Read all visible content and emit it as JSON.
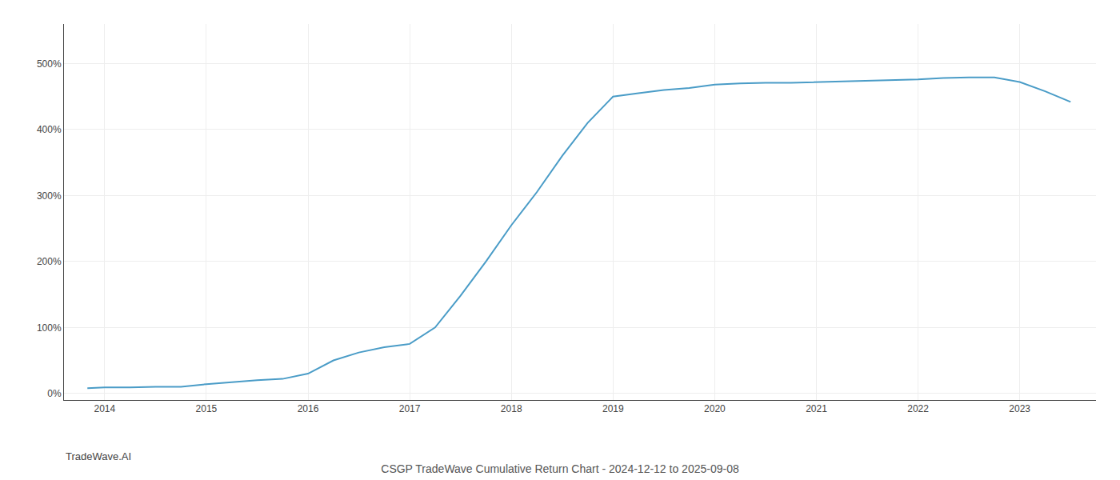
{
  "chart_data": {
    "type": "line",
    "title": "CSGP TradeWave Cumulative Return Chart - 2024-12-12 to 2025-09-08",
    "annotations": [
      "TradeWave.AI"
    ],
    "x": [
      2013.83,
      2014.0,
      2014.25,
      2014.5,
      2014.75,
      2015.0,
      2015.25,
      2015.5,
      2015.75,
      2016.0,
      2016.25,
      2016.5,
      2016.75,
      2017.0,
      2017.25,
      2017.5,
      2017.75,
      2018.0,
      2018.25,
      2018.5,
      2018.75,
      2019.0,
      2019.25,
      2019.5,
      2019.75,
      2020.0,
      2020.25,
      2020.5,
      2020.75,
      2021.0,
      2021.25,
      2021.5,
      2021.75,
      2022.0,
      2022.25,
      2022.5,
      2022.75,
      2023.0,
      2023.25,
      2023.5
    ],
    "values": [
      8,
      9,
      9,
      10,
      10,
      14,
      17,
      20,
      22,
      30,
      50,
      62,
      70,
      75,
      100,
      148,
      200,
      255,
      305,
      360,
      410,
      450,
      455,
      460,
      463,
      468,
      470,
      471,
      471,
      472,
      473,
      474,
      475,
      476,
      478,
      479,
      479,
      472,
      458,
      442
    ],
    "color": "#4a9cc7",
    "xlim": [
      2013.6,
      2023.75
    ],
    "xticks": [
      2014,
      2015,
      2016,
      2017,
      2018,
      2019,
      2020,
      2021,
      2022,
      2023
    ],
    "ylim": [
      -10,
      560
    ],
    "yticks": [
      {
        "value": 0,
        "label": "0%"
      },
      {
        "value": 100,
        "label": "100%"
      },
      {
        "value": 200,
        "label": "200%"
      },
      {
        "value": 300,
        "label": "300%"
      },
      {
        "value": 400,
        "label": "400%"
      },
      {
        "value": 500,
        "label": "500%"
      }
    ],
    "grid": true
  }
}
